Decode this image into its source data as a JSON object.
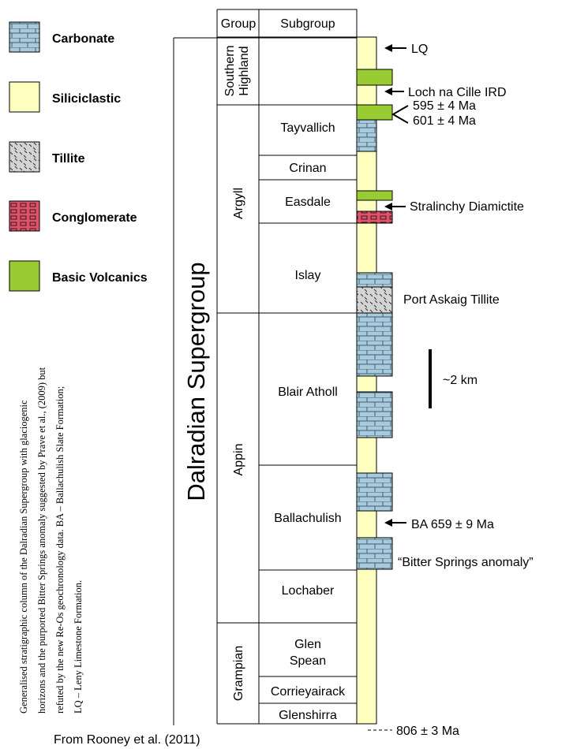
{
  "legend": {
    "items": [
      {
        "label": "Carbonate"
      },
      {
        "label": "Siliciclastic"
      },
      {
        "label": "Tillite"
      },
      {
        "label": "Conglomerate"
      },
      {
        "label": "Basic Volcanics"
      }
    ]
  },
  "caption": {
    "lines": [
      "Generalised stratigraphic column of the Dalradian Supergroup with glaciogenic",
      "horizons and the purported Bitter Springs anomaly suggested by Prave et al., (2009) but",
      "refuted by the new Re-Os geochronology data.   BA – Ballachulish  Slate Formation;",
      "LQ – Leny Limestone Formation."
    ]
  },
  "title": "Dalradian Supergroup",
  "header": {
    "group": "Group",
    "subgroup": "Subgroup"
  },
  "groups": [
    {
      "lines": [
        "Southern",
        "Highland"
      ]
    },
    {
      "lines": [
        "Argyll"
      ]
    },
    {
      "lines": [
        "Appin"
      ]
    },
    {
      "lines": [
        "Grampian"
      ]
    }
  ],
  "subgroups": [
    {
      "lines": [
        "Tayvallich"
      ]
    },
    {
      "lines": [
        "Crinan"
      ]
    },
    {
      "lines": [
        "Easdale"
      ]
    },
    {
      "lines": [
        "Islay"
      ]
    },
    {
      "lines": [
        "Blair Atholl"
      ]
    },
    {
      "lines": [
        "Ballachulish"
      ]
    },
    {
      "lines": [
        "Lochaber"
      ]
    },
    {
      "lines": [
        "Glen",
        "Spean"
      ]
    },
    {
      "lines": [
        "Corrieyairack"
      ]
    },
    {
      "lines": [
        "Glenshirra"
      ]
    }
  ],
  "annotations": {
    "lq": "LQ",
    "loch_na_cille": "Loch na Cille IRD",
    "age_595": "595 ± 4 Ma",
    "age_601": "601 ± 4 Ma",
    "stralinchy": "Stralinchy Diamictite",
    "port_askaig": "Port Askaig Tillite",
    "scale": "~2 km",
    "ba": "BA 659 ± 9 Ma",
    "bitter_springs": "“Bitter Springs anomaly”",
    "age_806": "806 ± 3 Ma"
  },
  "source": "From Rooney et al. (2011)"
}
